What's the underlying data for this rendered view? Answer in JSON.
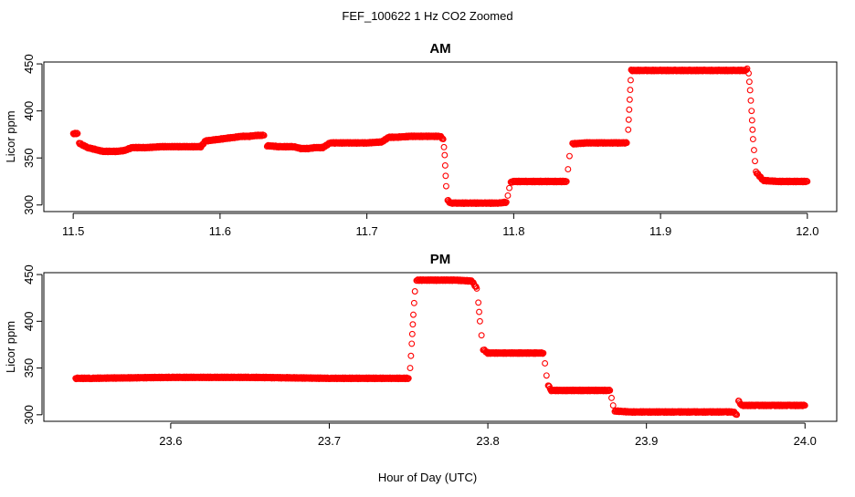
{
  "figure": {
    "title": "FEF_100622  1 Hz CO2 Zoomed",
    "xlabel": "Hour of Day (UTC)"
  },
  "colors": {
    "points": "#ff0000",
    "axis": "#000000"
  },
  "chart_data": [
    {
      "type": "scatter",
      "title": "AM",
      "ylabel": "Licor ppm",
      "xlim": [
        11.48,
        12.02
      ],
      "ylim": [
        293,
        452
      ],
      "xticks": [
        11.5,
        11.6,
        11.7,
        11.8,
        11.9,
        12.0
      ],
      "xtick_labels": [
        "11.5",
        "11.6",
        "11.7",
        "11.8",
        "11.9",
        "12.0"
      ],
      "yticks": [
        300,
        350,
        400,
        450
      ],
      "ytick_labels": [
        "300",
        "350",
        "400",
        "450"
      ],
      "grid": false,
      "series": [
        {
          "marker": "open-circle",
          "x": [
            11.5,
            11.503,
            11.504,
            11.506,
            11.51,
            11.515,
            11.52,
            11.525,
            11.53,
            11.535,
            11.54,
            11.545,
            11.55,
            11.56,
            11.57,
            11.58,
            11.587,
            11.59,
            11.6,
            11.61,
            11.615,
            11.62,
            11.625,
            11.63,
            11.632,
            11.64,
            11.65,
            11.655,
            11.66,
            11.665,
            11.67,
            11.675,
            11.68,
            11.69,
            11.7,
            11.71,
            11.715,
            11.72,
            11.73,
            11.74,
            11.75,
            11.752,
            11.753,
            11.754,
            11.755,
            11.757,
            11.76,
            11.77,
            11.78,
            11.79,
            11.795,
            11.796,
            11.797,
            11.798,
            11.8,
            11.81,
            11.82,
            11.83,
            11.836,
            11.837,
            11.838,
            11.84,
            11.85,
            11.86,
            11.87,
            11.877,
            11.878,
            11.879,
            11.88,
            11.89,
            11.9,
            11.91,
            11.92,
            11.93,
            11.94,
            11.95,
            11.958,
            11.959,
            11.96,
            11.961,
            11.962,
            11.963,
            11.965,
            11.97,
            11.98,
            11.99,
            12.0
          ],
          "y": [
            376,
            376,
            366,
            364,
            361,
            359,
            357,
            357,
            357,
            358,
            361,
            361,
            361,
            362,
            362,
            362,
            362,
            368,
            370,
            372,
            373,
            373,
            374,
            374,
            363,
            362,
            362,
            360,
            360,
            361,
            361,
            366,
            366,
            366,
            366,
            367,
            372,
            372,
            373,
            373,
            373,
            370,
            353,
            320,
            305,
            302,
            302,
            302,
            302,
            302,
            303,
            310,
            318,
            324,
            325,
            325,
            325,
            325,
            325,
            338,
            352,
            365,
            366,
            366,
            366,
            366,
            380,
            412,
            443,
            443,
            443,
            443,
            443,
            443,
            443,
            443,
            443,
            445,
            440,
            422,
            400,
            370,
            335,
            326,
            325,
            325,
            325
          ]
        }
      ]
    },
    {
      "type": "scatter",
      "title": "PM",
      "ylabel": "Licor ppm",
      "xlim": [
        23.52,
        24.02
      ],
      "ylim": [
        293,
        452
      ],
      "xticks": [
        23.6,
        23.7,
        23.8,
        23.9,
        24.0
      ],
      "xtick_labels": [
        "23.6",
        "23.7",
        "23.8",
        "23.9",
        "24.0"
      ],
      "yticks": [
        300,
        350,
        400,
        450
      ],
      "ytick_labels": [
        "300",
        "350",
        "400",
        "450"
      ],
      "grid": false,
      "series": [
        {
          "marker": "open-circle",
          "x": [
            23.54,
            23.55,
            23.6,
            23.65,
            23.7,
            23.75,
            23.751,
            23.752,
            23.753,
            23.754,
            23.755,
            23.76,
            23.77,
            23.78,
            23.79,
            23.793,
            23.794,
            23.795,
            23.796,
            23.797,
            23.8,
            23.81,
            23.82,
            23.83,
            23.835,
            23.836,
            23.837,
            23.838,
            23.84,
            23.85,
            23.86,
            23.87,
            23.877,
            23.878,
            23.879,
            23.88,
            23.89,
            23.9,
            23.91,
            23.92,
            23.93,
            23.94,
            23.95,
            23.955,
            23.957,
            23.958,
            23.96,
            23.97,
            23.98,
            23.99,
            24.0
          ],
          "y": [
            339,
            339,
            340,
            340,
            339,
            339,
            350,
            376,
            407,
            432,
            444,
            444,
            444,
            444,
            443,
            435,
            420,
            400,
            385,
            370,
            366,
            366,
            366,
            366,
            366,
            355,
            342,
            332,
            326,
            326,
            326,
            326,
            326,
            318,
            310,
            304,
            303,
            303,
            303,
            303,
            303,
            303,
            303,
            303,
            300,
            315,
            310,
            310,
            310,
            310,
            310
          ]
        }
      ]
    }
  ]
}
